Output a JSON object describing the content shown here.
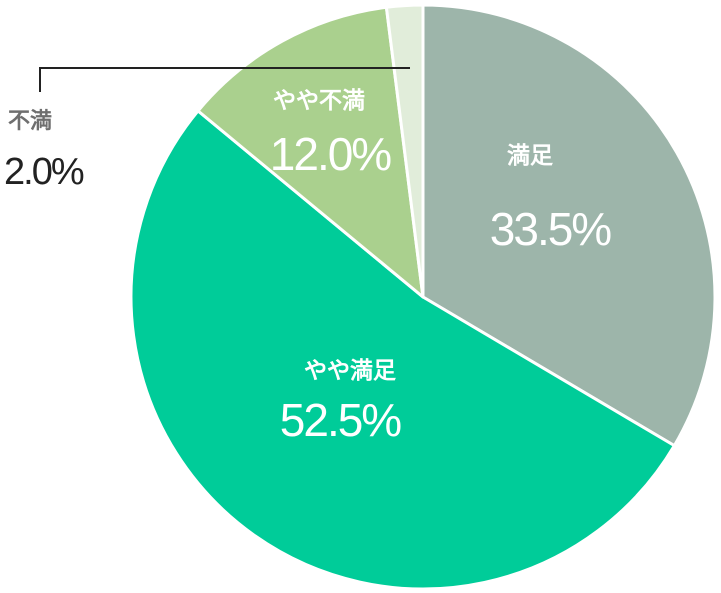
{
  "chart_data": {
    "type": "pie",
    "categories": [
      "満足",
      "やや満足",
      "やや不満",
      "不満"
    ],
    "values": [
      33.5,
      52.5,
      12.0,
      2.0
    ],
    "value_labels": [
      "33.5%",
      "52.5%",
      "12.0%",
      "2.0%"
    ],
    "colors": [
      "#9db5aa",
      "#00cc99",
      "#aad08e",
      "#e1edda"
    ],
    "start_angle_deg": 0,
    "direction": "clockwise",
    "legend": "none"
  }
}
